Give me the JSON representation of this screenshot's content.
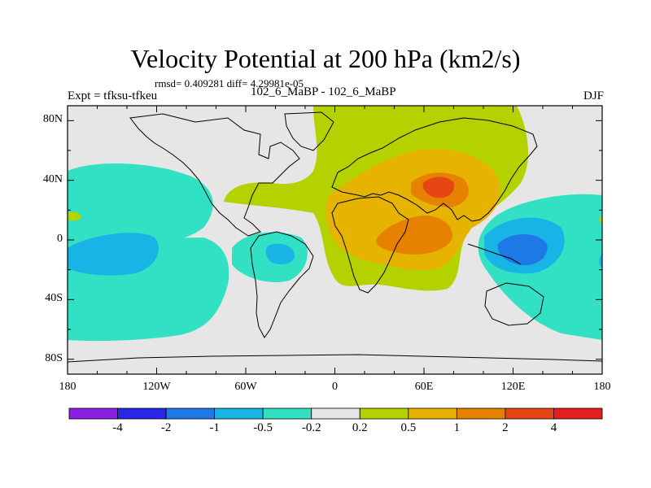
{
  "title": "Velocity Potential at 200 hPa (km2/s)",
  "stats": "rmsd= 0.409281 diff= 4.29981e-05",
  "experiment": "Expt = tfksu-tfkeu",
  "cases": "102_6_MaBP - 102_6_MaBP",
  "season": "DJF",
  "map": {
    "lon_ticks": [
      "180",
      "120W",
      "60W",
      "0",
      "60E",
      "120E",
      "180"
    ],
    "lat_ticks": [
      "80N",
      "40N",
      "0",
      "40S",
      "80S"
    ],
    "lon_range": [
      -180,
      180
    ],
    "lat_range": [
      -90,
      90
    ]
  },
  "colorbar": {
    "colors": [
      "#8c1ee6",
      "#2828e6",
      "#1e78e6",
      "#18b4e6",
      "#32e0c4",
      "#e6e6e6",
      "#b4d200",
      "#e6b400",
      "#e68200",
      "#e64614",
      "#e61e1e"
    ],
    "labels": [
      "-4",
      "-2",
      "-1",
      "-0.5",
      "-0.2",
      "0.2",
      "0.5",
      "1",
      "2",
      "4"
    ]
  },
  "colors": {
    "neutral": "#e6e6e6",
    "pos_weak": "#b4d200",
    "pos_mid": "#e6b400",
    "pos_strong": "#e68200",
    "pos_peak": "#e64614",
    "neg_weak": "#32e0c4",
    "neg_mid": "#18b4e6",
    "neg_strong": "#1e78e6"
  }
}
